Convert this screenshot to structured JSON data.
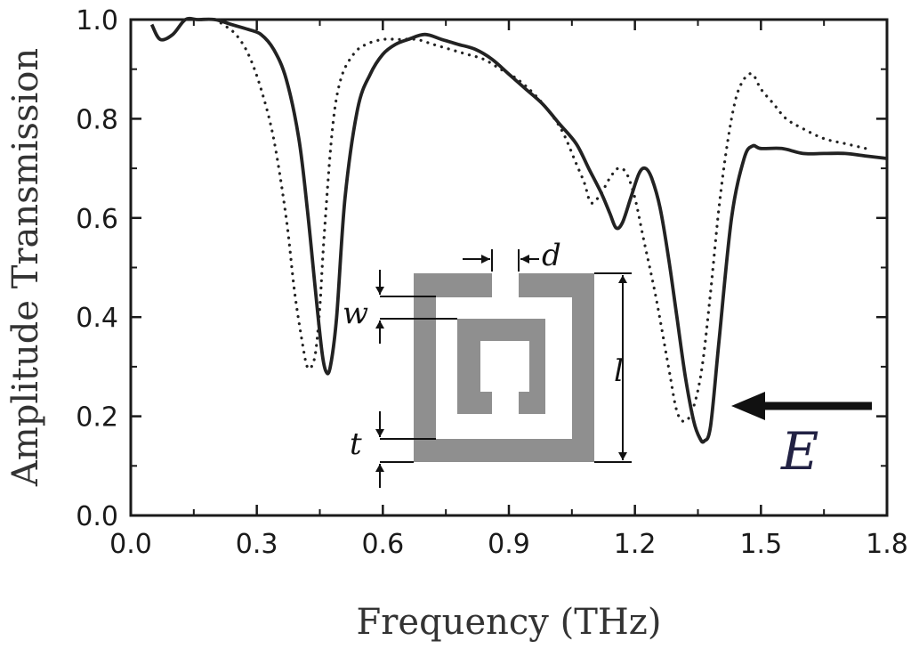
{
  "chart_data": {
    "type": "line",
    "title": "",
    "xlabel": "Frequency (THz)",
    "ylabel": "Amplitude Transmission",
    "xlim": [
      0.0,
      1.8
    ],
    "ylim": [
      0.0,
      1.0
    ],
    "xticks": [
      "0.0",
      "0.3",
      "0.6",
      "0.9",
      "1.2",
      "1.5",
      "1.8"
    ],
    "yticks": [
      "0.0",
      "0.2",
      "0.4",
      "0.6",
      "0.8",
      "1.0"
    ],
    "grid": false,
    "legend": "none",
    "series": [
      {
        "style": "solid",
        "color": "#222222",
        "x": [
          0.05,
          0.07,
          0.1,
          0.13,
          0.16,
          0.2,
          0.24,
          0.28,
          0.31,
          0.34,
          0.37,
          0.4,
          0.42,
          0.44,
          0.455,
          0.465,
          0.475,
          0.49,
          0.51,
          0.54,
          0.57,
          0.6,
          0.63,
          0.66,
          0.7,
          0.74,
          0.78,
          0.82,
          0.86,
          0.9,
          0.94,
          0.98,
          1.02,
          1.06,
          1.09,
          1.12,
          1.14,
          1.155,
          1.17,
          1.19,
          1.21,
          1.225,
          1.24,
          1.26,
          1.28,
          1.3,
          1.32,
          1.34,
          1.355,
          1.365,
          1.38,
          1.4,
          1.43,
          1.46,
          1.48,
          1.5,
          1.55,
          1.6,
          1.65,
          1.7,
          1.75,
          1.8
        ],
        "y": [
          0.99,
          0.96,
          0.97,
          1.0,
          1.0,
          1.0,
          0.99,
          0.98,
          0.97,
          0.94,
          0.88,
          0.76,
          0.62,
          0.45,
          0.33,
          0.29,
          0.3,
          0.4,
          0.64,
          0.82,
          0.89,
          0.93,
          0.95,
          0.96,
          0.97,
          0.96,
          0.95,
          0.94,
          0.92,
          0.89,
          0.86,
          0.83,
          0.79,
          0.75,
          0.7,
          0.65,
          0.61,
          0.58,
          0.59,
          0.64,
          0.69,
          0.7,
          0.68,
          0.62,
          0.52,
          0.4,
          0.28,
          0.19,
          0.155,
          0.15,
          0.18,
          0.35,
          0.6,
          0.72,
          0.745,
          0.74,
          0.74,
          0.73,
          0.73,
          0.73,
          0.725,
          0.72
        ]
      },
      {
        "style": "dotted",
        "color": "#222222",
        "x": [
          0.2,
          0.22,
          0.25,
          0.28,
          0.31,
          0.34,
          0.37,
          0.39,
          0.41,
          0.42,
          0.43,
          0.44,
          0.45,
          0.46,
          0.48,
          0.5,
          0.53,
          0.56,
          0.6,
          0.64,
          0.68,
          0.72,
          0.76,
          0.8,
          0.84,
          0.88,
          0.92,
          0.96,
          1.0,
          1.03,
          1.06,
          1.08,
          1.09,
          1.1,
          1.12,
          1.14,
          1.16,
          1.18,
          1.2,
          1.22,
          1.25,
          1.28,
          1.3,
          1.32,
          1.34,
          1.36,
          1.38,
          1.4,
          1.42,
          1.44,
          1.46,
          1.48,
          1.5,
          1.53,
          1.56,
          1.6,
          1.65,
          1.7,
          1.75
        ],
        "y": [
          1.0,
          0.99,
          0.97,
          0.93,
          0.86,
          0.76,
          0.6,
          0.45,
          0.34,
          0.3,
          0.3,
          0.33,
          0.42,
          0.56,
          0.78,
          0.88,
          0.93,
          0.95,
          0.96,
          0.96,
          0.96,
          0.95,
          0.94,
          0.93,
          0.92,
          0.9,
          0.88,
          0.85,
          0.81,
          0.77,
          0.71,
          0.67,
          0.64,
          0.63,
          0.65,
          0.68,
          0.7,
          0.69,
          0.64,
          0.56,
          0.44,
          0.3,
          0.21,
          0.19,
          0.22,
          0.3,
          0.45,
          0.62,
          0.75,
          0.84,
          0.88,
          0.89,
          0.86,
          0.83,
          0.8,
          0.78,
          0.76,
          0.75,
          0.74
        ]
      }
    ],
    "inset": {
      "dimension_labels": [
        "d",
        "w",
        "l",
        "t"
      ],
      "field_label": "E"
    }
  },
  "colors": {
    "axis": "#1a1a1a",
    "line": "#222222",
    "inset_fill": "#8f8f8f",
    "arrow": "#111111"
  }
}
